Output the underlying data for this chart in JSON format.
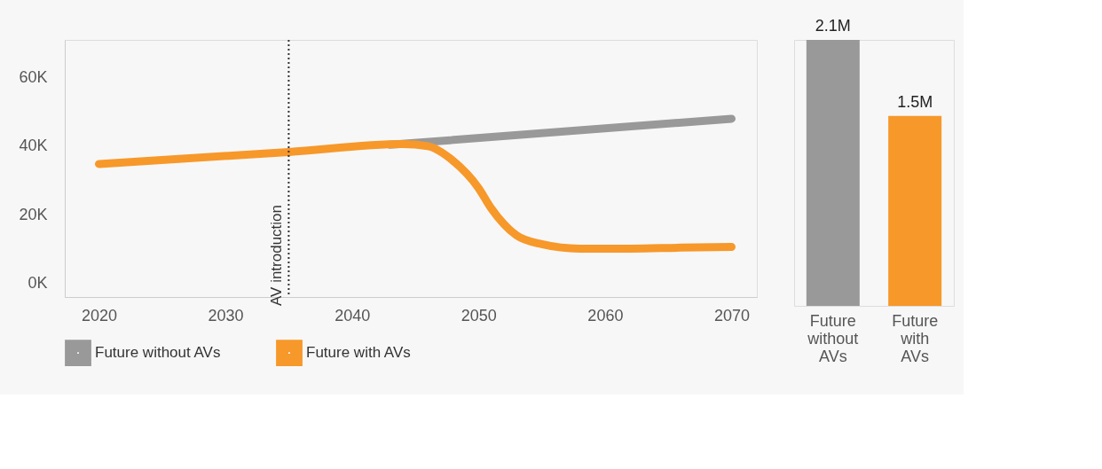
{
  "chart_data": [
    {
      "type": "line",
      "xlim": [
        2017.3,
        2072
      ],
      "ylim": [
        -4000,
        71000
      ],
      "xticks": [
        2020,
        2030,
        2040,
        2050,
        2060,
        2070
      ],
      "yticks": [
        {
          "value": 0,
          "label": "0K"
        },
        {
          "value": 20000,
          "label": "20K"
        },
        {
          "value": 40000,
          "label": "40K"
        },
        {
          "value": 60000,
          "label": "60K"
        }
      ],
      "series": [
        {
          "name": "Future without AVs",
          "color": "#999999",
          "x": [
            2043,
            2070
          ],
          "values": [
            40400,
            48000
          ]
        },
        {
          "name": "Future with AVs",
          "color": "#f7982a",
          "x": [
            2020,
            2035,
            2044,
            2046,
            2048,
            2050,
            2051,
            2052,
            2053,
            2055,
            2058,
            2062,
            2066,
            2070
          ],
          "values": [
            34800,
            38300,
            40600,
            40000,
            35700,
            27800,
            21900,
            17300,
            14000,
            11400,
            10100,
            10100,
            10400,
            10600
          ]
        }
      ],
      "ref_lines": [
        {
          "axis": "x",
          "value": 2035,
          "label": "AV introduction",
          "color": "#333333",
          "line_style": "dotted"
        }
      ],
      "legend": "bottom",
      "grid": false
    },
    {
      "type": "bar",
      "categories": [
        "Future without AVs",
        "Future with AVs"
      ],
      "values": [
        2100000,
        1500000
      ],
      "colors": [
        "#999999",
        "#f7982a"
      ],
      "value_labels": [
        "2.1M",
        "1.5M"
      ]
    }
  ]
}
